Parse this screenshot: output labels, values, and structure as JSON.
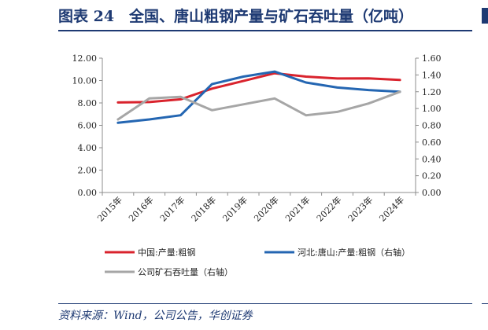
{
  "title": "图表 24　全国、唐山粗钢产量与矿石吞吐量（亿吨）",
  "source": "资料来源：Wind，公司公告，华创证券",
  "colors": {
    "accent": "#1e3a73"
  },
  "chart_data": {
    "type": "line",
    "title": "",
    "categories": [
      "2015年",
      "2016年",
      "2017年",
      "2018年",
      "2019年",
      "2020年",
      "2021年",
      "2022年",
      "2023年",
      "2024年"
    ],
    "y_left": {
      "ticks": [
        "12.00",
        "10.00",
        "8.00",
        "6.00",
        "4.00",
        "2.00",
        "0.00"
      ],
      "ylim": [
        0,
        12
      ]
    },
    "y_right": {
      "ticks": [
        "1.60",
        "1.40",
        "1.20",
        "1.00",
        "0.80",
        "0.60",
        "0.40",
        "0.20",
        "0.00"
      ],
      "ylim": [
        0,
        1.6
      ]
    },
    "series": [
      {
        "name": "中国:产量:粗钢",
        "axis": "left",
        "color": "#d9232d",
        "values": [
          8.04,
          8.08,
          8.32,
          9.28,
          9.96,
          10.65,
          10.35,
          10.18,
          10.19,
          10.05
        ]
      },
      {
        "name": "河北:唐山:产量:粗钢（右轴）",
        "axis": "right",
        "color": "#2466b2",
        "values": [
          0.83,
          0.87,
          0.92,
          1.29,
          1.38,
          1.44,
          1.31,
          1.25,
          1.22,
          1.2
        ]
      },
      {
        "name": "公司矿石吞吐量（右轴）",
        "axis": "right",
        "color": "#a6a6a6",
        "values": [
          0.87,
          1.12,
          1.14,
          0.98,
          1.05,
          1.12,
          0.92,
          0.96,
          1.06,
          1.2
        ]
      }
    ],
    "grid": false,
    "legend": "bottom"
  }
}
